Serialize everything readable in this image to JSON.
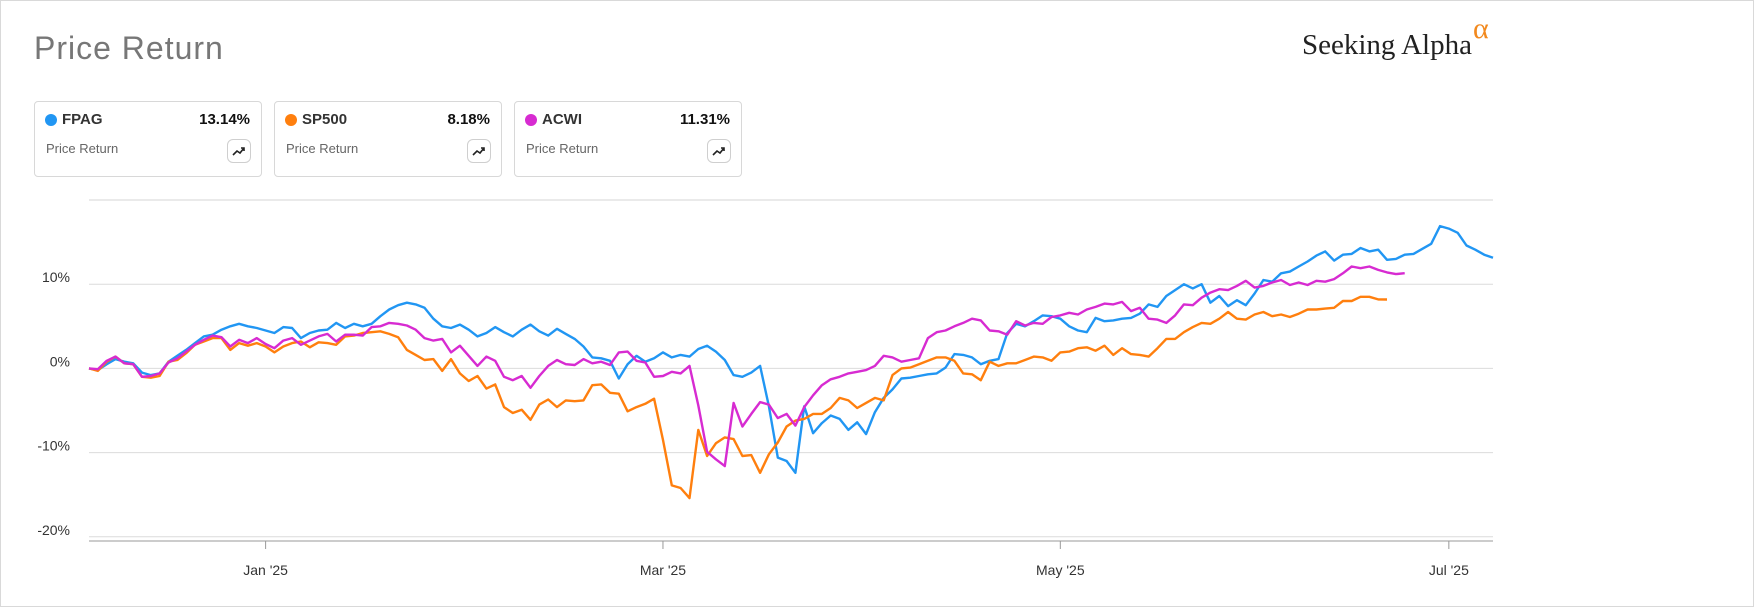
{
  "header": {
    "title": "Price Return",
    "brand": "Seeking Alpha",
    "brand_mark": "α"
  },
  "cards": [
    {
      "symbol": "FPAG",
      "value": "13.14%",
      "label": "Price Return",
      "color": "#2196f3",
      "icon": "trend-chart-icon"
    },
    {
      "symbol": "SP500",
      "value": "8.18%",
      "label": "Price Return",
      "color": "#ff7f0e",
      "icon": "trend-chart-icon"
    },
    {
      "symbol": "ACWI",
      "value": "11.31%",
      "label": "Price Return",
      "color": "#d72bd1",
      "icon": "trend-chart-icon"
    }
  ],
  "chart_data": {
    "type": "line",
    "title": "",
    "xlabel": "",
    "ylabel": "",
    "x_ticks": [
      "Jan '25",
      "Mar '25",
      "May '25",
      "Jul '25"
    ],
    "y_ticks": [
      "10%",
      "0%",
      "-10%",
      "-20%"
    ],
    "y_tick_values": [
      10,
      0,
      -10,
      -20
    ],
    "ylim": [
      -20.5,
      20
    ],
    "grid": true,
    "series": [
      {
        "name": "FPAG",
        "color": "#2196f3",
        "values": [
          0.0,
          -0.2,
          0.5,
          1.1,
          0.8,
          0.6,
          -0.5,
          -0.8,
          -0.6,
          0.8,
          1.5,
          2.2,
          3.0,
          3.8,
          4.0,
          4.6,
          5.0,
          5.3,
          5.0,
          4.8,
          4.5,
          4.2,
          4.9,
          4.8,
          3.6,
          4.2,
          4.5,
          4.6,
          5.4,
          4.8,
          5.3,
          5.0,
          5.3,
          6.2,
          7.0,
          7.5,
          7.8,
          7.6,
          7.2,
          5.9,
          5.0,
          4.8,
          5.2,
          4.6,
          3.8,
          4.2,
          4.9,
          4.3,
          3.8,
          4.6,
          5.2,
          4.4,
          3.9,
          4.7,
          4.1,
          3.5,
          2.6,
          1.3,
          1.2,
          0.9,
          -1.2,
          0.5,
          1.5,
          0.8,
          1.2,
          1.9,
          1.3,
          1.6,
          1.4,
          2.3,
          2.7,
          2.0,
          1.0,
          -0.8,
          -1.0,
          -0.5,
          0.3,
          -4.5,
          -10.6,
          -11.0,
          -12.4,
          -4.5,
          -7.7,
          -6.5,
          -5.6,
          -6.0,
          -7.3,
          -6.4,
          -7.8,
          -5.2,
          -3.5,
          -2.5,
          -1.2,
          -1.1,
          -0.9,
          -0.7,
          -0.6,
          0.1,
          1.7,
          1.6,
          1.3,
          0.5,
          0.9,
          1.1,
          4.2,
          5.3,
          5.0,
          5.6,
          6.3,
          6.2,
          5.9,
          5.0,
          4.5,
          4.3,
          6.0,
          5.6,
          5.7,
          5.9,
          6.0,
          6.5,
          7.6,
          7.3,
          8.6,
          9.3,
          10.0,
          9.5,
          10.0,
          7.8,
          8.6,
          7.4,
          8.1,
          7.5,
          8.9,
          10.5,
          10.3,
          11.3,
          11.5,
          12.1,
          12.7,
          13.4,
          13.9,
          12.8,
          13.5,
          13.6,
          14.3,
          13.9,
          14.1,
          12.9,
          13.0,
          13.5,
          13.6,
          14.2,
          14.8,
          16.9,
          16.6,
          16.1,
          14.6,
          14.1,
          13.5,
          13.14
        ]
      },
      {
        "name": "SP500",
        "color": "#ff7f0e",
        "values": [
          0.0,
          -0.3,
          0.8,
          1.4,
          0.6,
          0.5,
          -1.0,
          -1.1,
          -0.9,
          0.8,
          1.0,
          1.8,
          2.8,
          3.2,
          3.6,
          3.6,
          2.2,
          3.0,
          2.7,
          3.0,
          2.6,
          1.9,
          2.6,
          3.0,
          3.2,
          2.5,
          3.1,
          3.0,
          2.8,
          3.8,
          3.9,
          4.2,
          4.3,
          4.4,
          4.1,
          3.7,
          2.2,
          1.6,
          1.0,
          1.1,
          -0.3,
          1.1,
          -0.6,
          -1.5,
          -0.9,
          -2.4,
          -1.9,
          -4.6,
          -5.3,
          -4.9,
          -6.1,
          -4.3,
          -3.7,
          -4.6,
          -3.8,
          -3.9,
          -3.8,
          -2.0,
          -1.9,
          -2.9,
          -3.0,
          -5.1,
          -4.6,
          -4.2,
          -3.6,
          -8.5,
          -13.9,
          -14.2,
          -15.4,
          -7.3,
          -10.4,
          -8.9,
          -8.2,
          -8.4,
          -10.4,
          -10.3,
          -12.4,
          -10.2,
          -8.8,
          -6.9,
          -6.2,
          -6.0,
          -5.4,
          -5.4,
          -4.7,
          -3.5,
          -3.8,
          -4.7,
          -4.1,
          -3.5,
          -3.8,
          -0.8,
          0.0,
          0.1,
          0.5,
          0.9,
          1.3,
          1.3,
          0.9,
          -0.6,
          -0.7,
          -1.4,
          0.8,
          0.3,
          0.6,
          0.6,
          1.0,
          1.4,
          1.3,
          0.9,
          1.9,
          2.0,
          2.4,
          2.5,
          2.1,
          2.7,
          1.6,
          2.4,
          1.7,
          1.6,
          1.4,
          2.4,
          3.5,
          3.5,
          4.3,
          4.9,
          5.4,
          5.3,
          5.9,
          6.7,
          5.9,
          5.8,
          6.4,
          6.7,
          6.2,
          6.4,
          6.1,
          6.5,
          7.0,
          7.0,
          7.1,
          7.2,
          8.0,
          8.0,
          8.5,
          8.5,
          8.2,
          8.18
        ]
      },
      {
        "name": "ACWI",
        "color": "#d72bd1",
        "values": [
          0.0,
          -0.1,
          0.9,
          1.4,
          0.6,
          0.5,
          -1.0,
          -0.9,
          -0.6,
          0.7,
          1.2,
          2.0,
          2.8,
          3.4,
          3.9,
          3.7,
          2.6,
          3.4,
          3.0,
          3.6,
          2.9,
          2.4,
          3.3,
          3.6,
          2.8,
          3.3,
          3.8,
          4.1,
          3.2,
          4.0,
          4.0,
          3.9,
          4.9,
          5.0,
          5.4,
          5.3,
          5.1,
          4.6,
          3.6,
          3.3,
          3.5,
          1.9,
          2.7,
          1.5,
          0.3,
          1.4,
          0.9,
          -1.0,
          -1.4,
          -0.9,
          -2.3,
          -0.9,
          0.3,
          1.0,
          0.5,
          0.4,
          1.1,
          0.6,
          0.8,
          0.4,
          1.9,
          2.0,
          0.9,
          0.7,
          -1.0,
          -0.9,
          -0.4,
          -0.6,
          0.3,
          -4.4,
          -9.9,
          -10.8,
          -11.6,
          -4.1,
          -6.9,
          -5.4,
          -4.0,
          -4.3,
          -5.9,
          -5.4,
          -6.8,
          -4.6,
          -3.2,
          -2.0,
          -1.3,
          -1.0,
          -0.6,
          -0.4,
          -0.2,
          0.3,
          1.5,
          1.3,
          0.8,
          1.0,
          1.2,
          3.6,
          4.3,
          4.5,
          5.0,
          5.4,
          5.9,
          5.7,
          4.5,
          4.4,
          4.0,
          5.6,
          5.1,
          5.4,
          5.3,
          6.1,
          6.3,
          6.6,
          6.4,
          7.0,
          7.3,
          7.7,
          7.6,
          7.9,
          6.8,
          7.2,
          5.9,
          5.8,
          5.4,
          6.3,
          7.6,
          7.5,
          8.4,
          9.0,
          9.4,
          9.3,
          9.8,
          10.4,
          9.6,
          9.8,
          10.2,
          10.5,
          9.9,
          10.2,
          9.9,
          10.4,
          10.3,
          10.6,
          11.3,
          12.1,
          11.9,
          12.1,
          11.7,
          11.4,
          11.2,
          11.31
        ]
      }
    ]
  }
}
